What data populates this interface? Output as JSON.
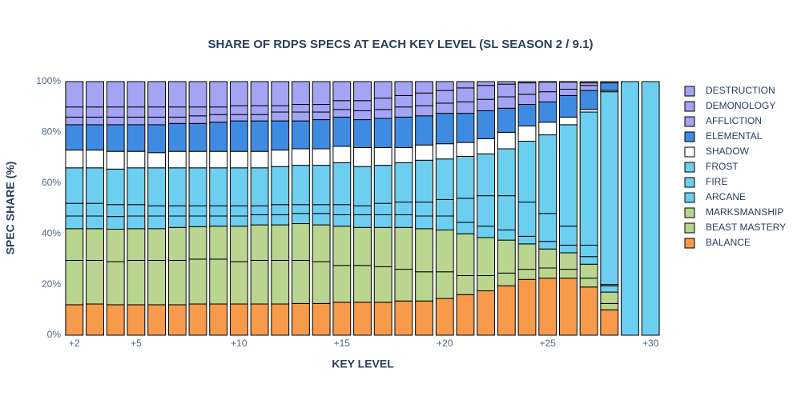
{
  "chart_data": {
    "type": "stacked_bar",
    "title": "SHARE OF RDPS SPECS AT EACH KEY LEVEL (SL SEASON 2 / 9.1)",
    "x_label": "KEY LEVEL",
    "y_label": "SPEC SHARE (%)",
    "x": [
      2,
      3,
      4,
      5,
      6,
      7,
      8,
      9,
      10,
      11,
      12,
      13,
      14,
      15,
      16,
      17,
      18,
      19,
      20,
      21,
      22,
      23,
      24,
      25,
      26,
      27,
      28,
      29,
      30
    ],
    "xlim": [
      1.5,
      30.5
    ],
    "xticks": [
      {
        "value": 2,
        "label": "+2"
      },
      {
        "value": 5,
        "label": "+5"
      },
      {
        "value": 10,
        "label": "+10"
      },
      {
        "value": 15,
        "label": "+15"
      },
      {
        "value": 20,
        "label": "+20"
      },
      {
        "value": 25,
        "label": "+25"
      },
      {
        "value": 30,
        "label": "+30"
      }
    ],
    "ylim": [
      0,
      100
    ],
    "yticks": [
      {
        "value": 0,
        "label": "0%"
      },
      {
        "value": 20,
        "label": "20%"
      },
      {
        "value": 40,
        "label": "40%"
      },
      {
        "value": 60,
        "label": "60%"
      },
      {
        "value": 80,
        "label": "80%"
      },
      {
        "value": 100,
        "label": "100%"
      }
    ],
    "series": [
      {
        "name": "BALANCE",
        "color": "#f89a4c",
        "values": [
          12,
          12.3,
          12,
          12,
          12,
          12,
          12.3,
          12.3,
          12.3,
          12.3,
          12.3,
          12.5,
          12.5,
          13,
          13,
          13,
          13.5,
          13.5,
          14.5,
          16,
          17.5,
          19.5,
          22,
          22.5,
          22.5,
          19,
          10,
          0,
          0
        ]
      },
      {
        "name": "BEAST MASTERY",
        "color": "#b9d58f",
        "values": [
          17.5,
          17.2,
          17,
          17.5,
          17.5,
          17.5,
          17.7,
          17.7,
          16.7,
          17.2,
          17.2,
          17,
          16.5,
          14.5,
          14.5,
          14,
          12.5,
          11.5,
          10.5,
          7.5,
          6,
          5,
          4,
          4,
          3.5,
          3.5,
          2.5,
          0,
          0
        ]
      },
      {
        "name": "MARKSMANSHIP",
        "color": "#b9d58f",
        "values": [
          12.5,
          12.5,
          12.8,
          12.5,
          12.5,
          13,
          12.8,
          13,
          14,
          14,
          14,
          14.5,
          14.5,
          15.5,
          15,
          15.5,
          16.5,
          17,
          16.5,
          16.5,
          15,
          13,
          10,
          7.5,
          6.5,
          5.5,
          4.5,
          0,
          0
        ]
      },
      {
        "name": "ARCANE",
        "color": "#6dcff0",
        "values": [
          5,
          5,
          5,
          5,
          5,
          4.5,
          4.2,
          4,
          4,
          4,
          4,
          4,
          4.5,
          4.5,
          5,
          5,
          5,
          5,
          5.5,
          4.5,
          4.5,
          4,
          3,
          3,
          3,
          3,
          2.5,
          0,
          0
        ]
      },
      {
        "name": "FIRE",
        "color": "#6dcff0",
        "values": [
          5,
          5,
          4.7,
          4.5,
          4,
          4,
          4,
          4,
          4,
          3.5,
          4,
          3.5,
          3.5,
          4,
          3.5,
          4.5,
          5,
          5.5,
          6.5,
          9.5,
          12,
          13.5,
          13.5,
          11,
          7.5,
          4.5,
          0.5,
          0,
          0
        ]
      },
      {
        "name": "FROST",
        "color": "#6dcff0",
        "values": [
          14,
          14,
          14,
          14.5,
          15,
          15,
          15,
          15,
          15,
          15,
          15,
          15.5,
          15.5,
          16.5,
          15.5,
          15,
          15.5,
          16.5,
          16,
          16.5,
          16.5,
          18.5,
          24,
          31,
          40,
          52.5,
          76,
          100,
          100
        ]
      },
      {
        "name": "SHADOW",
        "color": "#ffffff",
        "values": [
          7,
          7,
          7,
          6.5,
          6,
          6.5,
          6.5,
          6.5,
          6.5,
          6.5,
          6.5,
          6.5,
          6.5,
          6.5,
          7.5,
          7,
          6,
          6,
          6,
          5.5,
          6,
          6.5,
          6,
          5,
          3,
          1,
          0.5,
          0,
          0
        ]
      },
      {
        "name": "ELEMENTAL",
        "color": "#3f8be2",
        "values": [
          10,
          10,
          10.5,
          10.5,
          11,
          11,
          11,
          11.5,
          12,
          12,
          11.5,
          11,
          11.5,
          11.5,
          11,
          11.5,
          12,
          11.5,
          12,
          11.5,
          11,
          9.5,
          8.5,
          8,
          8.5,
          7.5,
          3,
          0,
          0
        ]
      },
      {
        "name": "AFFLICTION",
        "color": "#a4a4f4",
        "values": [
          3,
          3,
          3,
          3,
          3,
          2.5,
          3,
          3,
          2.5,
          2.5,
          3.5,
          3.5,
          3,
          3,
          3.5,
          3.5,
          4,
          4,
          4,
          4.5,
          4.5,
          4.5,
          4,
          4,
          2.5,
          2,
          0.5,
          0,
          0
        ]
      },
      {
        "name": "DEMONOLOGY",
        "color": "#a4a4f4",
        "values": [
          4,
          4,
          4,
          4,
          4,
          4,
          3.5,
          3,
          3.5,
          3.5,
          2.5,
          3,
          3,
          3.5,
          4,
          4.5,
          4.5,
          5,
          5,
          5.5,
          5.5,
          5,
          4.5,
          3.8,
          2.8,
          1,
          0,
          0,
          0
        ]
      },
      {
        "name": "DESTRUCTION",
        "color": "#a4a4f4",
        "values": [
          10,
          10,
          10,
          10,
          10,
          10,
          10,
          10,
          9.5,
          9.5,
          9.5,
          9,
          9,
          7.5,
          7.5,
          6.5,
          5.5,
          4.5,
          3.5,
          2.5,
          1.5,
          1,
          0.5,
          0.2,
          0.2,
          0.5,
          0,
          0,
          0
        ]
      }
    ]
  }
}
